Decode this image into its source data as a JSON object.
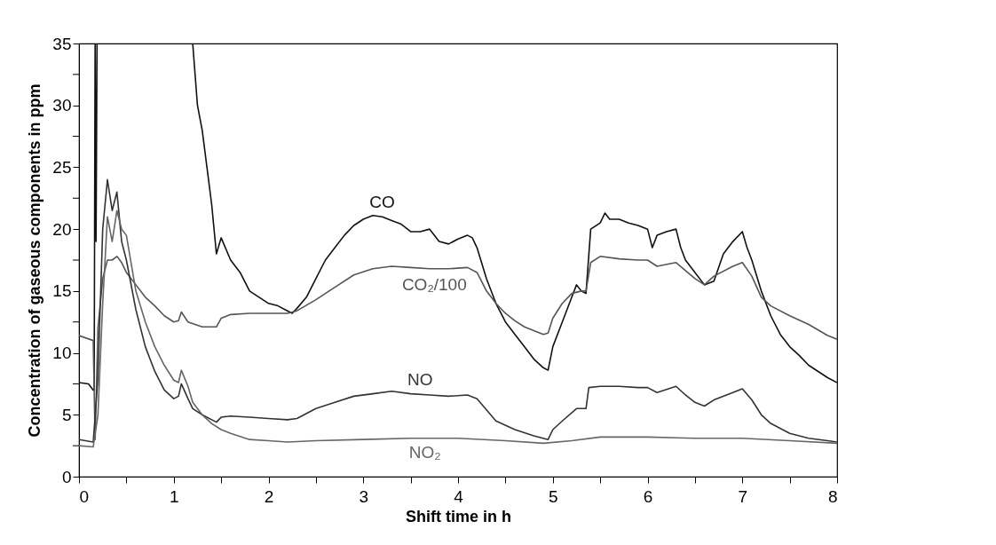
{
  "chart_data": {
    "type": "line",
    "xlabel": "Shift time in h",
    "ylabel": "Concentration of gaseous components in ppm",
    "xlim": [
      0,
      8
    ],
    "ylim": [
      0,
      35
    ],
    "xticks": [
      0,
      {
        "value": 0.5,
        "label": null
      },
      1,
      {
        "value": 1.5,
        "label": null
      },
      2,
      {
        "value": 2.5,
        "label": null
      },
      3,
      {
        "value": 3.5,
        "label": null
      },
      4,
      {
        "value": 4.5,
        "label": null
      },
      5,
      {
        "value": 5.5,
        "label": null
      },
      6,
      {
        "value": 6.5,
        "label": null
      },
      7,
      {
        "value": 7.5,
        "label": null
      },
      8
    ],
    "yticks": [
      0,
      {
        "value": 2.5,
        "label": null
      },
      5,
      {
        "value": 7.5,
        "label": null
      },
      10,
      {
        "value": 12.5,
        "label": null
      },
      15,
      {
        "value": 17.5,
        "label": null
      },
      20,
      {
        "value": 22.5,
        "label": null
      },
      25,
      {
        "value": 27.5,
        "label": null
      },
      30,
      {
        "value": 32.5,
        "label": null
      },
      35
    ],
    "grid": false,
    "marker": "none",
    "line_style": "solid",
    "series": [
      {
        "name": "CO",
        "color": "#111111",
        "x": [
          0,
          0.1,
          0.15,
          0.16,
          0.17,
          0.18,
          0.19,
          0.7,
          1.2,
          1.25,
          1.3,
          1.35,
          1.4,
          1.45,
          1.5,
          1.6,
          1.7,
          1.8,
          1.9,
          2.0,
          2.1,
          2.2,
          2.25,
          2.3,
          2.4,
          2.5,
          2.6,
          2.7,
          2.8,
          2.9,
          3.0,
          3.1,
          3.2,
          3.3,
          3.4,
          3.5,
          3.6,
          3.7,
          3.8,
          3.9,
          4.0,
          4.1,
          4.15,
          4.2,
          4.3,
          4.4,
          4.5,
          4.6,
          4.7,
          4.8,
          4.9,
          4.95,
          5.0,
          5.1,
          5.2,
          5.25,
          5.3,
          5.35,
          5.4,
          5.5,
          5.55,
          5.6,
          5.7,
          5.8,
          5.9,
          6.0,
          6.05,
          6.1,
          6.2,
          6.3,
          6.35,
          6.4,
          6.5,
          6.6,
          6.7,
          6.8,
          6.9,
          7.0,
          7.05,
          7.1,
          7.2,
          7.3,
          7.4,
          7.5,
          7.6,
          7.7,
          7.8,
          7.9,
          8.0
        ],
        "values": [
          7.6,
          7.5,
          7.0,
          7.0,
          35,
          19,
          35,
          null,
          35,
          30,
          28,
          25,
          22,
          18,
          19.3,
          17.5,
          16.5,
          15,
          14.5,
          14,
          13.8,
          13.4,
          13.2,
          13.6,
          14.5,
          16,
          17.5,
          18.5,
          19.5,
          20.3,
          20.8,
          21.1,
          21,
          20.7,
          20.4,
          19.8,
          19.8,
          20,
          19,
          18.8,
          19.2,
          19.5,
          19.3,
          18.5,
          16,
          14,
          12.5,
          11.5,
          10.5,
          9.5,
          8.8,
          8.6,
          10.5,
          12.5,
          14.5,
          15.5,
          15,
          14.8,
          20,
          20.5,
          21.3,
          20.8,
          20.8,
          20.5,
          20.3,
          20,
          18.5,
          19.5,
          19.8,
          20,
          18.5,
          17.5,
          16.5,
          15.5,
          15.8,
          18,
          19,
          19.8,
          18.5,
          17.5,
          15,
          13,
          11.5,
          10.5,
          9.8,
          9,
          8.5,
          8,
          7.6
        ]
      },
      {
        "name": "CO₂/100",
        "color": "#555555",
        "x": [
          0,
          0.15,
          0.17,
          0.2,
          0.25,
          0.3,
          0.35,
          0.4,
          0.45,
          0.5,
          0.6,
          0.7,
          0.8,
          0.9,
          1.0,
          1.05,
          1.08,
          1.15,
          1.3,
          1.45,
          1.5,
          1.6,
          1.8,
          2.0,
          2.2,
          2.3,
          2.5,
          2.7,
          2.9,
          3.1,
          3.3,
          3.5,
          3.7,
          3.9,
          4.1,
          4.2,
          4.3,
          4.4,
          4.5,
          4.6,
          4.7,
          4.8,
          4.9,
          4.95,
          5.0,
          5.1,
          5.2,
          5.3,
          5.35,
          5.4,
          5.5,
          5.7,
          5.9,
          6.0,
          6.1,
          6.3,
          6.5,
          6.6,
          6.7,
          6.9,
          7.0,
          7.1,
          7.2,
          7.3,
          7.5,
          7.7,
          7.9,
          8.0
        ],
        "values": [
          11.4,
          11.0,
          3,
          12,
          16,
          17.5,
          17.5,
          17.8,
          17.3,
          16.5,
          15.5,
          14.5,
          13.8,
          13,
          12.5,
          12.6,
          13.3,
          12.5,
          12.1,
          12.1,
          12.8,
          13.1,
          13.2,
          13.2,
          13.2,
          13.4,
          14.3,
          15.3,
          16.3,
          16.8,
          17,
          16.9,
          16.8,
          16.8,
          16.9,
          16.5,
          15,
          14,
          13.2,
          12.6,
          12.1,
          11.8,
          11.5,
          11.6,
          12.8,
          14,
          14.8,
          15,
          15,
          17.3,
          17.8,
          17.6,
          17.5,
          17.5,
          17.0,
          17.3,
          16,
          15.5,
          16.2,
          17,
          17.3,
          16.2,
          14.5,
          13.8,
          13,
          12.3,
          11.4,
          11.1
        ]
      },
      {
        "name": "NO",
        "color": "#333333",
        "x": [
          0,
          0.15,
          0.2,
          0.25,
          0.3,
          0.35,
          0.4,
          0.45,
          0.5,
          0.6,
          0.7,
          0.8,
          0.9,
          1.0,
          1.05,
          1.08,
          1.15,
          1.2,
          1.3,
          1.45,
          1.5,
          1.6,
          1.8,
          2.0,
          2.2,
          2.3,
          2.5,
          2.7,
          2.9,
          3.1,
          3.3,
          3.5,
          3.7,
          3.9,
          4.1,
          4.2,
          4.3,
          4.4,
          4.6,
          4.8,
          4.95,
          5.0,
          5.1,
          5.25,
          5.35,
          5.38,
          5.5,
          5.7,
          5.9,
          6.0,
          6.1,
          6.3,
          6.4,
          6.5,
          6.6,
          6.7,
          6.9,
          7.0,
          7.1,
          7.2,
          7.3,
          7.5,
          7.7,
          7.9,
          8.0
        ],
        "values": [
          3.0,
          2.8,
          8,
          20,
          24,
          21.5,
          23,
          19,
          17.5,
          13.5,
          10.5,
          8.5,
          7,
          6.3,
          6.5,
          7.5,
          6.3,
          5.5,
          5,
          4.4,
          4.8,
          4.9,
          4.8,
          4.7,
          4.6,
          4.7,
          5.5,
          6,
          6.5,
          6.7,
          6.9,
          6.7,
          6.6,
          6.5,
          6.6,
          6.3,
          5.4,
          4.5,
          3.8,
          3.3,
          3.0,
          3.8,
          4.5,
          5.5,
          5.5,
          7.2,
          7.3,
          7.3,
          7.2,
          7.2,
          6.8,
          7.3,
          6.6,
          6,
          5.7,
          6.2,
          6.8,
          7.1,
          6.2,
          5,
          4.3,
          3.5,
          3.1,
          2.9,
          2.8
        ]
      },
      {
        "name": "NO₂",
        "color": "#666666",
        "x": [
          0,
          0.15,
          0.2,
          0.25,
          0.3,
          0.35,
          0.4,
          0.45,
          0.5,
          0.6,
          0.7,
          0.8,
          0.9,
          1.0,
          1.05,
          1.08,
          1.15,
          1.2,
          1.3,
          1.4,
          1.5,
          1.6,
          1.8,
          2.0,
          2.2,
          2.5,
          3.0,
          3.5,
          4.0,
          4.5,
          4.9,
          5.2,
          5.5,
          6.0,
          6.5,
          7.0,
          7.5,
          8.0
        ],
        "values": [
          2.5,
          2.4,
          5,
          14,
          21,
          19,
          21.5,
          20,
          19.5,
          15,
          12.5,
          10.5,
          9,
          7.8,
          7.6,
          8.6,
          7.3,
          6,
          5,
          4.3,
          3.8,
          3.5,
          3.0,
          2.9,
          2.8,
          2.9,
          3.0,
          3.1,
          3.1,
          2.9,
          2.7,
          2.9,
          3.2,
          3.2,
          3.1,
          3.1,
          2.9,
          2.7
        ]
      }
    ]
  }
}
